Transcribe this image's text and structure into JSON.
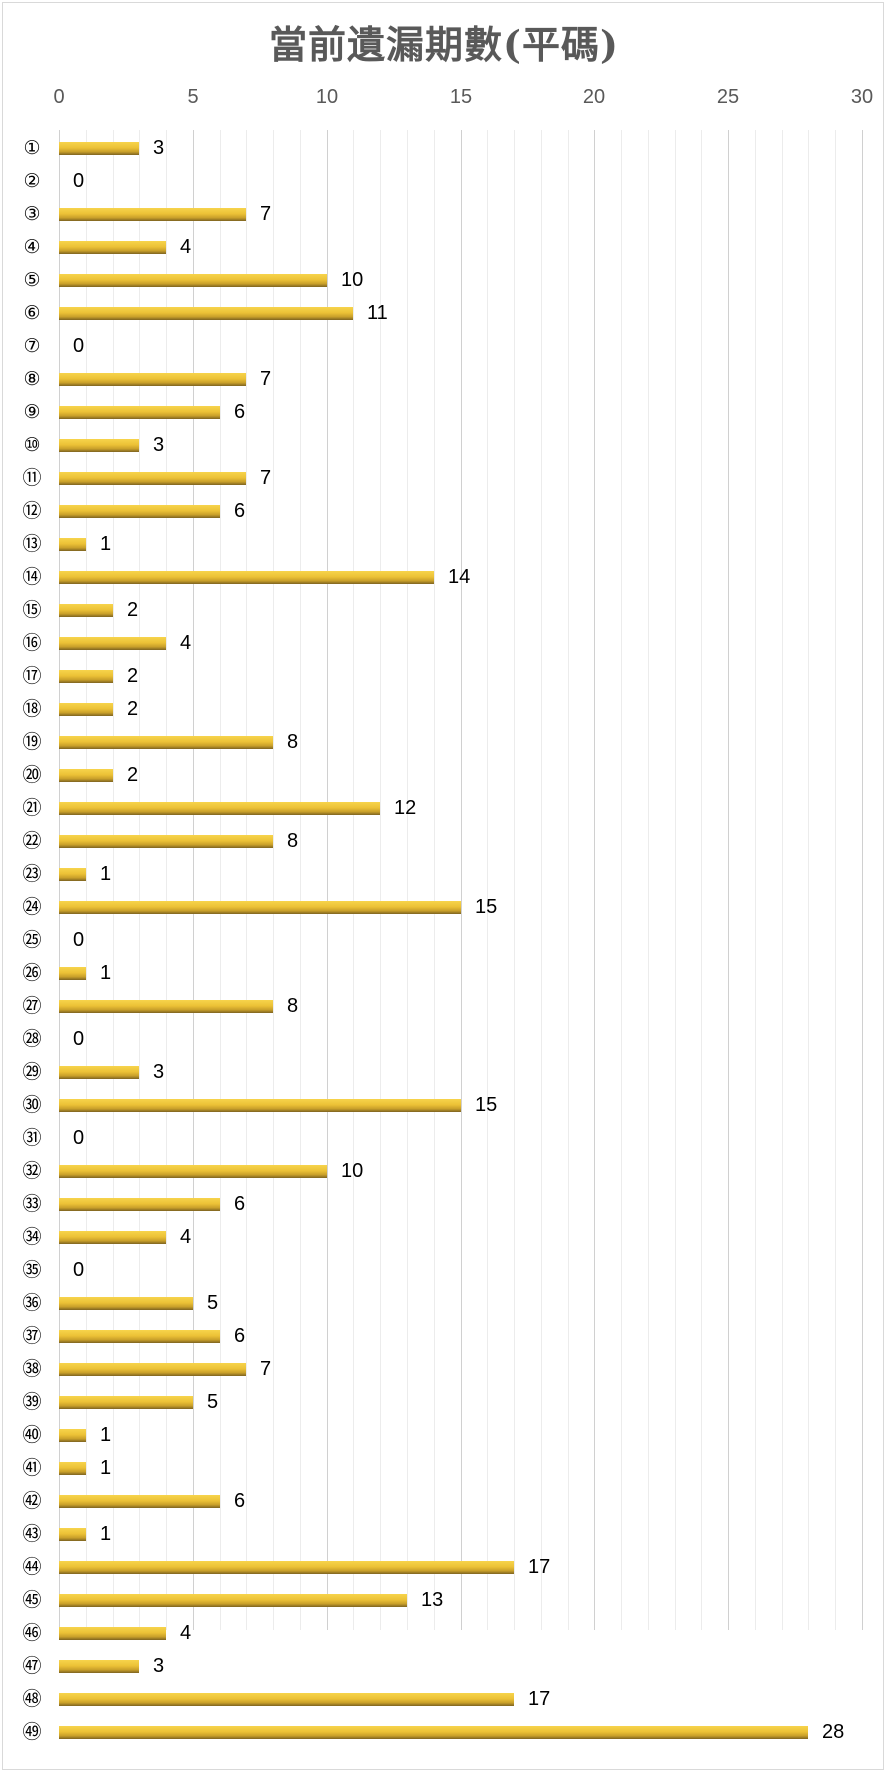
{
  "chart_data": {
    "type": "bar",
    "orientation": "horizontal",
    "title": "當前遺漏期數(平碼)",
    "xlabel": "",
    "ylabel": "",
    "xlim": [
      0,
      30
    ],
    "x_ticks": [
      "0",
      "5",
      "10",
      "15",
      "20",
      "25",
      "30"
    ],
    "x_axis_position": "top",
    "grid": true,
    "legend": null,
    "categories": [
      "①",
      "②",
      "③",
      "④",
      "⑤",
      "⑥",
      "⑦",
      "⑧",
      "⑨",
      "⑩",
      "⑪",
      "⑫",
      "⑬",
      "⑭",
      "⑮",
      "⑯",
      "⑰",
      "⑱",
      "⑲",
      "⑳",
      "㉑",
      "㉒",
      "㉓",
      "㉔",
      "㉕",
      "㉖",
      "㉗",
      "㉘",
      "㉙",
      "㉚",
      "㉛",
      "㉜",
      "㉝",
      "㉞",
      "㉟",
      "㊱",
      "㊲",
      "㊳",
      "㊴",
      "㊵",
      "㊶",
      "㊷",
      "㊸",
      "㊹",
      "㊺",
      "㊻",
      "㊼",
      "㊽",
      "㊾"
    ],
    "values": [
      3,
      0,
      7,
      4,
      10,
      11,
      0,
      7,
      6,
      3,
      7,
      6,
      1,
      14,
      2,
      4,
      2,
      2,
      8,
      2,
      12,
      8,
      1,
      15,
      0,
      1,
      8,
      0,
      3,
      15,
      0,
      10,
      6,
      4,
      0,
      5,
      6,
      7,
      5,
      1,
      1,
      6,
      1,
      17,
      13,
      4,
      3,
      17,
      28
    ],
    "data_labels": true,
    "bar_color": "#ecc136"
  }
}
